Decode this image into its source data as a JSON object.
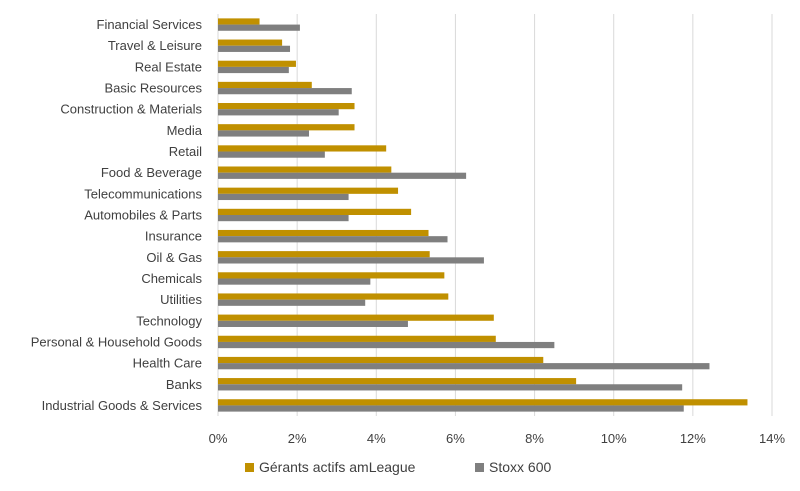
{
  "chart_data": {
    "type": "bar",
    "orientation": "horizontal",
    "categories": [
      "Financial Services",
      "Travel & Leisure",
      "Real Estate",
      "Basic Resources",
      "Construction & Materials",
      "Media",
      "Retail",
      "Food & Beverage",
      "Telecommunications",
      "Automobiles & Parts",
      "Insurance",
      "Oil & Gas",
      "Chemicals",
      "Utilities",
      "Technology",
      "Personal & Household Goods",
      "Health Care",
      "Banks",
      "Industrial Goods & Services"
    ],
    "series": [
      {
        "name": "Gérants actifs amLeague",
        "color": "#C09000",
        "values": [
          1.05,
          1.62,
          1.97,
          2.37,
          3.45,
          3.45,
          4.25,
          4.38,
          4.55,
          4.88,
          5.32,
          5.35,
          5.72,
          5.82,
          6.97,
          7.02,
          8.22,
          9.05,
          13.38
        ]
      },
      {
        "name": "Stoxx 600",
        "color": "#7F7F7F",
        "values": [
          2.07,
          1.82,
          1.79,
          3.38,
          3.05,
          2.3,
          2.7,
          6.27,
          3.3,
          3.3,
          5.8,
          6.72,
          3.85,
          3.72,
          4.8,
          8.5,
          12.42,
          11.73,
          11.77
        ]
      }
    ],
    "xlim": [
      0,
      14
    ],
    "x_ticks": [
      "0%",
      "2%",
      "4%",
      "6%",
      "8%",
      "10%",
      "12%",
      "14%"
    ],
    "grid": "vertical",
    "legend_position": "bottom"
  }
}
